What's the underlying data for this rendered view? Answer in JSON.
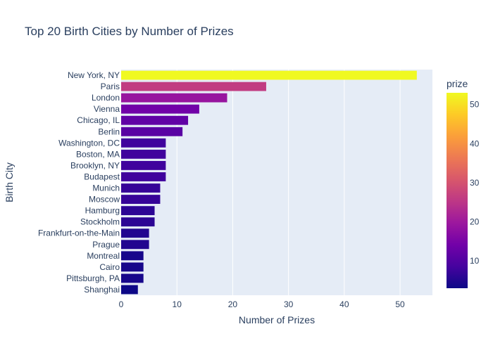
{
  "chart_data": {
    "type": "bar",
    "orientation": "horizontal",
    "title": "Top 20 Birth Cities by Number of Prizes",
    "xlabel": "Number of Prizes",
    "ylabel": "Birth City",
    "xlim": [
      0,
      55.8
    ],
    "xticks": [
      0,
      10,
      20,
      30,
      40,
      50
    ],
    "grid": true,
    "categories": [
      "New York, NY",
      "Paris",
      "London",
      "Vienna",
      "Chicago, IL",
      "Berlin",
      "Washington, DC",
      "Boston, MA",
      "Brooklyn, NY",
      "Budapest",
      "Munich",
      "Moscow",
      "Hamburg",
      "Stockholm",
      "Frankfurt-on-the-Main",
      "Prague",
      "Montreal",
      "Cairo",
      "Pittsburgh, PA",
      "Shanghai"
    ],
    "values": [
      53,
      26,
      19,
      14,
      12,
      11,
      8,
      8,
      8,
      8,
      7,
      7,
      6,
      6,
      5,
      5,
      4,
      4,
      4,
      3
    ],
    "colorbar": {
      "title": "prize",
      "range": [
        3,
        53
      ],
      "ticks": [
        10,
        20,
        30,
        40,
        50
      ],
      "colorscale": [
        [
          0.0,
          "#0d0887"
        ],
        [
          0.111,
          "#46039f"
        ],
        [
          0.222,
          "#7201a8"
        ],
        [
          0.333,
          "#9c179e"
        ],
        [
          0.444,
          "#bd3786"
        ],
        [
          0.556,
          "#d8576b"
        ],
        [
          0.667,
          "#ed7953"
        ],
        [
          0.778,
          "#fb9f3a"
        ],
        [
          0.889,
          "#fdca26"
        ],
        [
          1.0,
          "#f0f921"
        ]
      ]
    },
    "colors": {
      "plot_bg": "#e5ecf6",
      "grid": "#ffffff",
      "text": "#2a3f5f"
    }
  }
}
